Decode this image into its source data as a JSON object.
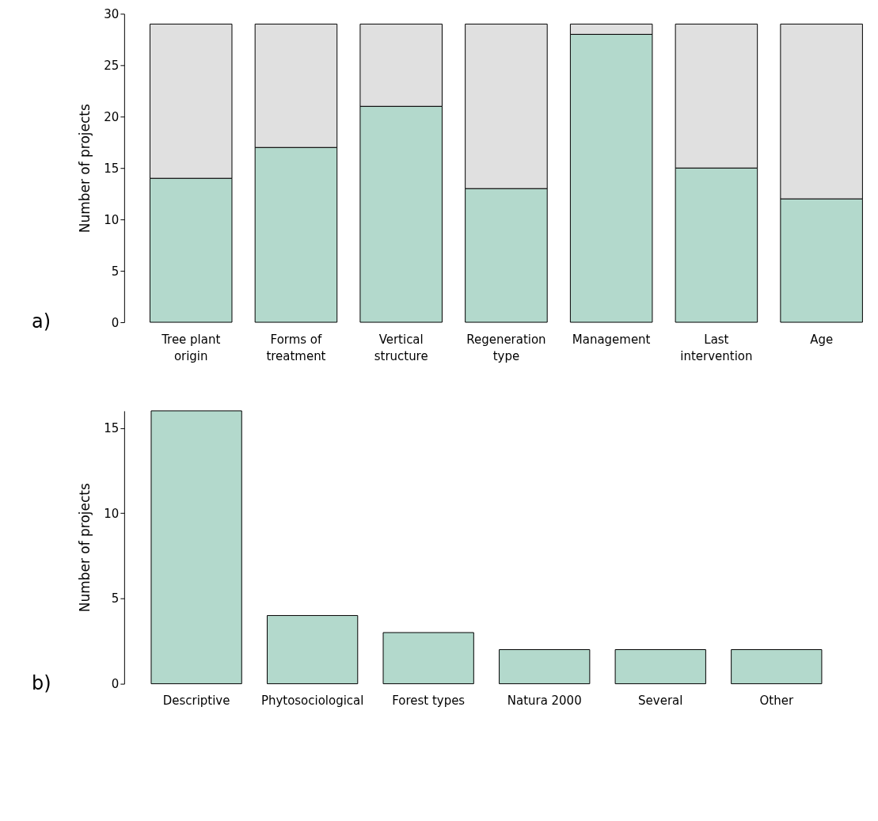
{
  "chart_data": [
    {
      "type": "bar",
      "stacked": true,
      "ylabel": "Number of projects",
      "categories": [
        "Tree plant origin",
        "Forms of treatment",
        "Vertical structure",
        "Regeneration type",
        "Management",
        "Last intervention",
        "Age"
      ],
      "series": [
        {
          "color": "#b3d9cc",
          "values": [
            14,
            17,
            21,
            13,
            28,
            15,
            12
          ]
        },
        {
          "color": "#e0e0e0",
          "values": [
            15,
            12,
            8,
            16,
            1,
            14,
            17
          ]
        }
      ],
      "ylim": [
        0,
        30
      ],
      "yticks": [
        0,
        5,
        10,
        15,
        20,
        25,
        30
      ],
      "grid": false,
      "legend": false,
      "annotations": [
        "a)"
      ]
    },
    {
      "type": "bar",
      "ylabel": "Number of projects",
      "categories": [
        "Descriptive",
        "Phytosociological",
        "Forest types",
        "Natura 2000",
        "Several",
        "Other"
      ],
      "series": [
        {
          "color": "#b3d9cc",
          "values": [
            16,
            4,
            3,
            2,
            2,
            2
          ]
        }
      ],
      "ylim": [
        0,
        16
      ],
      "yticks": [
        0,
        5,
        10,
        15
      ],
      "grid": false,
      "legend": false,
      "annotations": [
        "b)"
      ]
    }
  ]
}
